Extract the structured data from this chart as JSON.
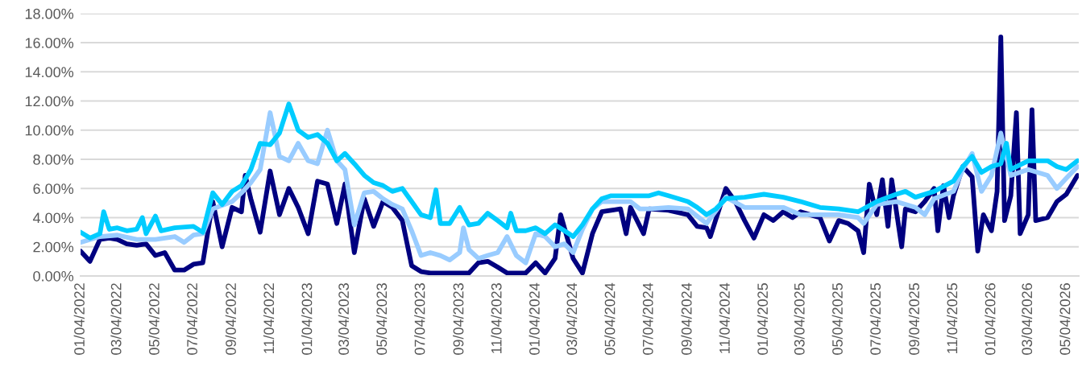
{
  "chart_data": {
    "type": "line",
    "xlim": [
      "2022-01-04",
      "2026-05-24"
    ],
    "xticks": [
      {
        "value": "2022-01-04",
        "label": "01/04/2022"
      },
      {
        "value": "2022-03-04",
        "label": "03/04/2022"
      },
      {
        "value": "2022-05-04",
        "label": "05/04/2022"
      },
      {
        "value": "2022-07-04",
        "label": "07/04/2022"
      },
      {
        "value": "2022-09-04",
        "label": "09/04/2022"
      },
      {
        "value": "2022-11-04",
        "label": "11/04/2022"
      },
      {
        "value": "2023-01-04",
        "label": "01/04/2023"
      },
      {
        "value": "2023-03-04",
        "label": "03/04/2023"
      },
      {
        "value": "2023-05-04",
        "label": "05/04/2023"
      },
      {
        "value": "2023-07-04",
        "label": "07/04/2023"
      },
      {
        "value": "2023-09-04",
        "label": "09/04/2023"
      },
      {
        "value": "2023-11-04",
        "label": "11/04/2023"
      },
      {
        "value": "2024-01-04",
        "label": "01/04/2024"
      },
      {
        "value": "2024-03-04",
        "label": "03/04/2024"
      },
      {
        "value": "2024-05-04",
        "label": "05/04/2024"
      },
      {
        "value": "2024-07-04",
        "label": "07/04/2024"
      },
      {
        "value": "2024-09-04",
        "label": "09/04/2024"
      },
      {
        "value": "2024-11-04",
        "label": "11/04/2024"
      },
      {
        "value": "2025-01-04",
        "label": "01/04/2025"
      },
      {
        "value": "2025-03-04",
        "label": "03/04/2025"
      },
      {
        "value": "2025-05-04",
        "label": "05/04/2025"
      },
      {
        "value": "2025-07-04",
        "label": "07/04/2025"
      },
      {
        "value": "2025-09-04",
        "label": "09/04/2025"
      },
      {
        "value": "2025-11-04",
        "label": "11/04/2025"
      },
      {
        "value": "2026-01-04",
        "label": "01/04/2026"
      },
      {
        "value": "2026-03-04",
        "label": "03/04/2026"
      },
      {
        "value": "2026-05-04",
        "label": "05/04/2026"
      }
    ],
    "ylim": [
      0,
      18
    ],
    "yticks": [
      {
        "value": 0,
        "label": "0.00%"
      },
      {
        "value": 2,
        "label": "2.00%"
      },
      {
        "value": 4,
        "label": "4.00%"
      },
      {
        "value": 6,
        "label": "6.00%"
      },
      {
        "value": 8,
        "label": "8.00%"
      },
      {
        "value": 10,
        "label": "10.00%"
      },
      {
        "value": 12,
        "label": "12.00%"
      },
      {
        "value": 14,
        "label": "14.00%"
      },
      {
        "value": 16,
        "label": "16.00%"
      },
      {
        "value": 18,
        "label": "18.00%"
      }
    ],
    "grid": "y",
    "marker": "none",
    "line_style": "solid",
    "series": [
      {
        "color": "#000080",
        "x": [
          "2022-01-04",
          "2022-01-19",
          "2022-02-04",
          "2022-02-19",
          "2022-03-04",
          "2022-03-19",
          "2022-04-04",
          "2022-04-19",
          "2022-05-04",
          "2022-05-19",
          "2022-06-04",
          "2022-06-19",
          "2022-07-04",
          "2022-07-19",
          "2022-08-04",
          "2022-08-19",
          "2022-09-04",
          "2022-09-19",
          "2022-09-25",
          "2022-10-04",
          "2022-10-19",
          "2022-11-04",
          "2022-11-19",
          "2022-12-04",
          "2022-12-19",
          "2023-01-04",
          "2023-01-19",
          "2023-02-04",
          "2023-02-19",
          "2023-03-04",
          "2023-03-19",
          "2023-04-04",
          "2023-04-19",
          "2023-05-04",
          "2023-05-19",
          "2023-06-04",
          "2023-06-19",
          "2023-07-04",
          "2023-07-19",
          "2023-08-19",
          "2023-09-19",
          "2023-10-04",
          "2023-10-19",
          "2023-11-04",
          "2023-11-19",
          "2023-12-19",
          "2024-01-04",
          "2024-01-19",
          "2024-02-04",
          "2024-02-13",
          "2024-03-04",
          "2024-03-19",
          "2024-04-04",
          "2024-04-19",
          "2024-05-04",
          "2024-05-19",
          "2024-05-28",
          "2024-06-04",
          "2024-06-25",
          "2024-07-04",
          "2024-08-04",
          "2024-09-04",
          "2024-09-19",
          "2024-10-04",
          "2024-10-10",
          "2024-10-19",
          "2024-11-04",
          "2024-11-19",
          "2024-12-04",
          "2024-12-19",
          "2025-01-04",
          "2025-01-19",
          "2025-02-04",
          "2025-02-19",
          "2025-03-04",
          "2025-03-19",
          "2025-04-04",
          "2025-04-19",
          "2025-05-04",
          "2025-05-19",
          "2025-06-04",
          "2025-06-13",
          "2025-06-22",
          "2025-07-04",
          "2025-07-13",
          "2025-07-22",
          "2025-07-28",
          "2025-08-13",
          "2025-08-19",
          "2025-09-04",
          "2025-09-19",
          "2025-10-04",
          "2025-10-10",
          "2025-10-19",
          "2025-10-28",
          "2025-11-04",
          "2025-11-19",
          "2025-12-04",
          "2025-12-13",
          "2025-12-22",
          "2026-01-04",
          "2026-01-13",
          "2026-01-19",
          "2026-01-25",
          "2026-02-04",
          "2026-02-13",
          "2026-02-19",
          "2026-03-04",
          "2026-03-10",
          "2026-03-16",
          "2026-04-04",
          "2026-04-19",
          "2026-05-04",
          "2026-05-22"
        ],
        "values": [
          1.7,
          1.0,
          2.5,
          2.6,
          2.5,
          2.2,
          2.1,
          2.2,
          1.4,
          1.6,
          0.4,
          0.4,
          0.8,
          0.9,
          5.1,
          2.0,
          4.7,
          4.4,
          6.9,
          5.3,
          3.0,
          7.2,
          4.2,
          6.0,
          4.7,
          2.9,
          6.5,
          6.3,
          3.6,
          6.3,
          1.6,
          5.3,
          3.4,
          5.1,
          4.7,
          3.8,
          0.7,
          0.3,
          0.2,
          0.2,
          0.2,
          0.9,
          1.0,
          0.6,
          0.2,
          0.2,
          0.9,
          0.2,
          1.2,
          4.2,
          1.2,
          0.2,
          2.9,
          4.4,
          4.5,
          4.6,
          2.9,
          4.7,
          2.9,
          4.6,
          4.5,
          4.2,
          3.4,
          3.3,
          2.7,
          3.9,
          6.0,
          5.1,
          3.8,
          2.6,
          4.2,
          3.8,
          4.4,
          4.0,
          4.4,
          4.2,
          4.0,
          2.4,
          3.8,
          3.6,
          3.1,
          1.6,
          6.3,
          4.2,
          6.6,
          3.4,
          6.6,
          2.0,
          4.6,
          4.4,
          5.1,
          6.0,
          3.1,
          6.2,
          4.0,
          5.5,
          7.5,
          6.8,
          1.7,
          4.2,
          3.1,
          5.8,
          16.4,
          3.8,
          5.5,
          11.2,
          2.9,
          4.2,
          11.4,
          3.8,
          4.0,
          5.1,
          5.6,
          6.9
        ]
      },
      {
        "color": "#99ccff",
        "x": [
          "2022-01-04",
          "2022-02-04",
          "2022-03-04",
          "2022-04-04",
          "2022-05-04",
          "2022-06-04",
          "2022-06-19",
          "2022-07-04",
          "2022-07-19",
          "2022-08-04",
          "2022-09-04",
          "2022-09-19",
          "2022-10-04",
          "2022-10-19",
          "2022-11-04",
          "2022-11-19",
          "2022-12-04",
          "2022-12-19",
          "2023-01-04",
          "2023-01-19",
          "2023-02-04",
          "2023-02-19",
          "2023-03-04",
          "2023-03-19",
          "2023-04-04",
          "2023-04-19",
          "2023-05-04",
          "2023-05-19",
          "2023-06-04",
          "2023-06-19",
          "2023-07-04",
          "2023-07-19",
          "2023-08-04",
          "2023-08-19",
          "2023-09-04",
          "2023-09-10",
          "2023-09-19",
          "2023-10-04",
          "2023-10-19",
          "2023-11-04",
          "2023-11-19",
          "2023-12-04",
          "2023-12-19",
          "2024-01-04",
          "2024-01-19",
          "2024-02-04",
          "2024-02-19",
          "2024-03-04",
          "2024-03-19",
          "2024-04-04",
          "2024-04-19",
          "2024-05-04",
          "2024-06-04",
          "2024-06-19",
          "2024-07-04",
          "2024-08-04",
          "2024-09-04",
          "2024-10-04",
          "2024-11-04",
          "2024-12-04",
          "2025-01-04",
          "2025-02-04",
          "2025-03-04",
          "2025-04-04",
          "2025-05-04",
          "2025-06-04",
          "2025-06-13",
          "2025-07-04",
          "2025-08-04",
          "2025-09-04",
          "2025-09-19",
          "2025-10-04",
          "2025-11-04",
          "2025-11-19",
          "2025-12-04",
          "2025-12-19",
          "2026-01-04",
          "2026-01-19",
          "2026-02-04",
          "2026-03-04",
          "2026-04-04",
          "2026-04-19",
          "2026-05-04",
          "2026-05-22"
        ],
        "values": [
          2.3,
          2.7,
          2.8,
          2.5,
          2.5,
          2.7,
          2.3,
          2.8,
          2.9,
          4.6,
          5.1,
          5.7,
          6.4,
          7.3,
          11.2,
          8.2,
          7.9,
          9.1,
          7.9,
          7.7,
          10.0,
          7.9,
          7.3,
          3.5,
          5.7,
          5.8,
          5.3,
          4.9,
          4.6,
          3.1,
          1.4,
          1.6,
          1.4,
          1.1,
          1.6,
          3.3,
          1.8,
          1.2,
          1.4,
          1.6,
          2.7,
          1.4,
          0.9,
          2.9,
          2.7,
          2.0,
          2.2,
          1.6,
          3.2,
          4.6,
          5.1,
          5.1,
          5.1,
          4.6,
          4.6,
          4.7,
          4.6,
          3.6,
          5.4,
          4.7,
          4.7,
          4.7,
          4.2,
          4.2,
          4.2,
          4.0,
          3.6,
          4.9,
          5.1,
          4.7,
          4.2,
          5.3,
          5.8,
          7.3,
          8.4,
          5.8,
          6.9,
          9.8,
          6.9,
          7.3,
          6.9,
          6.0,
          6.7,
          7.5
        ]
      },
      {
        "color": "#00ccff",
        "x": [
          "2022-01-04",
          "2022-01-19",
          "2022-02-04",
          "2022-02-10",
          "2022-02-19",
          "2022-03-04",
          "2022-03-19",
          "2022-04-04",
          "2022-04-13",
          "2022-04-19",
          "2022-05-04",
          "2022-05-13",
          "2022-06-04",
          "2022-07-04",
          "2022-07-19",
          "2022-08-04",
          "2022-08-19",
          "2022-09-04",
          "2022-09-19",
          "2022-10-04",
          "2022-10-19",
          "2022-11-04",
          "2022-11-19",
          "2022-12-04",
          "2022-12-19",
          "2023-01-04",
          "2023-01-19",
          "2023-02-04",
          "2023-02-19",
          "2023-03-04",
          "2023-03-19",
          "2023-04-04",
          "2023-04-19",
          "2023-05-04",
          "2023-05-19",
          "2023-06-04",
          "2023-06-19",
          "2023-07-04",
          "2023-07-19",
          "2023-07-28",
          "2023-08-04",
          "2023-08-19",
          "2023-09-04",
          "2023-09-19",
          "2023-10-04",
          "2023-10-19",
          "2023-11-04",
          "2023-11-19",
          "2023-11-25",
          "2023-12-04",
          "2023-12-19",
          "2024-01-04",
          "2024-01-19",
          "2024-02-04",
          "2024-02-19",
          "2024-03-04",
          "2024-03-19",
          "2024-04-04",
          "2024-04-19",
          "2024-05-04",
          "2024-06-04",
          "2024-07-04",
          "2024-07-19",
          "2024-08-04",
          "2024-09-04",
          "2024-09-19",
          "2024-10-04",
          "2024-10-19",
          "2024-11-04",
          "2024-12-04",
          "2025-01-04",
          "2025-02-04",
          "2025-03-04",
          "2025-04-04",
          "2025-05-04",
          "2025-06-04",
          "2025-07-04",
          "2025-08-04",
          "2025-08-19",
          "2025-09-04",
          "2025-10-04",
          "2025-11-04",
          "2025-11-19",
          "2025-12-04",
          "2025-12-19",
          "2026-01-04",
          "2026-01-19",
          "2026-01-28",
          "2026-02-04",
          "2026-03-04",
          "2026-04-04",
          "2026-04-19",
          "2026-05-04",
          "2026-05-22"
        ],
        "values": [
          3.0,
          2.6,
          2.9,
          4.4,
          3.2,
          3.3,
          3.1,
          3.2,
          4.0,
          2.9,
          4.1,
          3.1,
          3.3,
          3.4,
          3.0,
          5.7,
          4.9,
          5.8,
          6.2,
          7.3,
          9.1,
          9.0,
          9.8,
          11.8,
          10.0,
          9.5,
          9.7,
          9.1,
          7.9,
          8.4,
          7.7,
          6.9,
          6.4,
          6.2,
          5.8,
          6.0,
          5.1,
          4.2,
          4.0,
          5.9,
          3.6,
          3.6,
          4.7,
          3.5,
          3.6,
          4.3,
          3.8,
          3.3,
          4.3,
          3.1,
          3.1,
          3.3,
          2.9,
          3.5,
          3.1,
          2.7,
          3.5,
          4.6,
          5.3,
          5.5,
          5.5,
          5.5,
          5.7,
          5.5,
          5.1,
          4.7,
          4.2,
          4.6,
          5.3,
          5.4,
          5.6,
          5.4,
          5.1,
          4.7,
          4.6,
          4.4,
          5.1,
          5.6,
          5.8,
          5.4,
          5.8,
          6.5,
          7.5,
          8.2,
          7.1,
          7.5,
          7.7,
          9.1,
          7.3,
          7.9,
          7.9,
          7.5,
          7.3,
          7.9
        ]
      }
    ]
  }
}
